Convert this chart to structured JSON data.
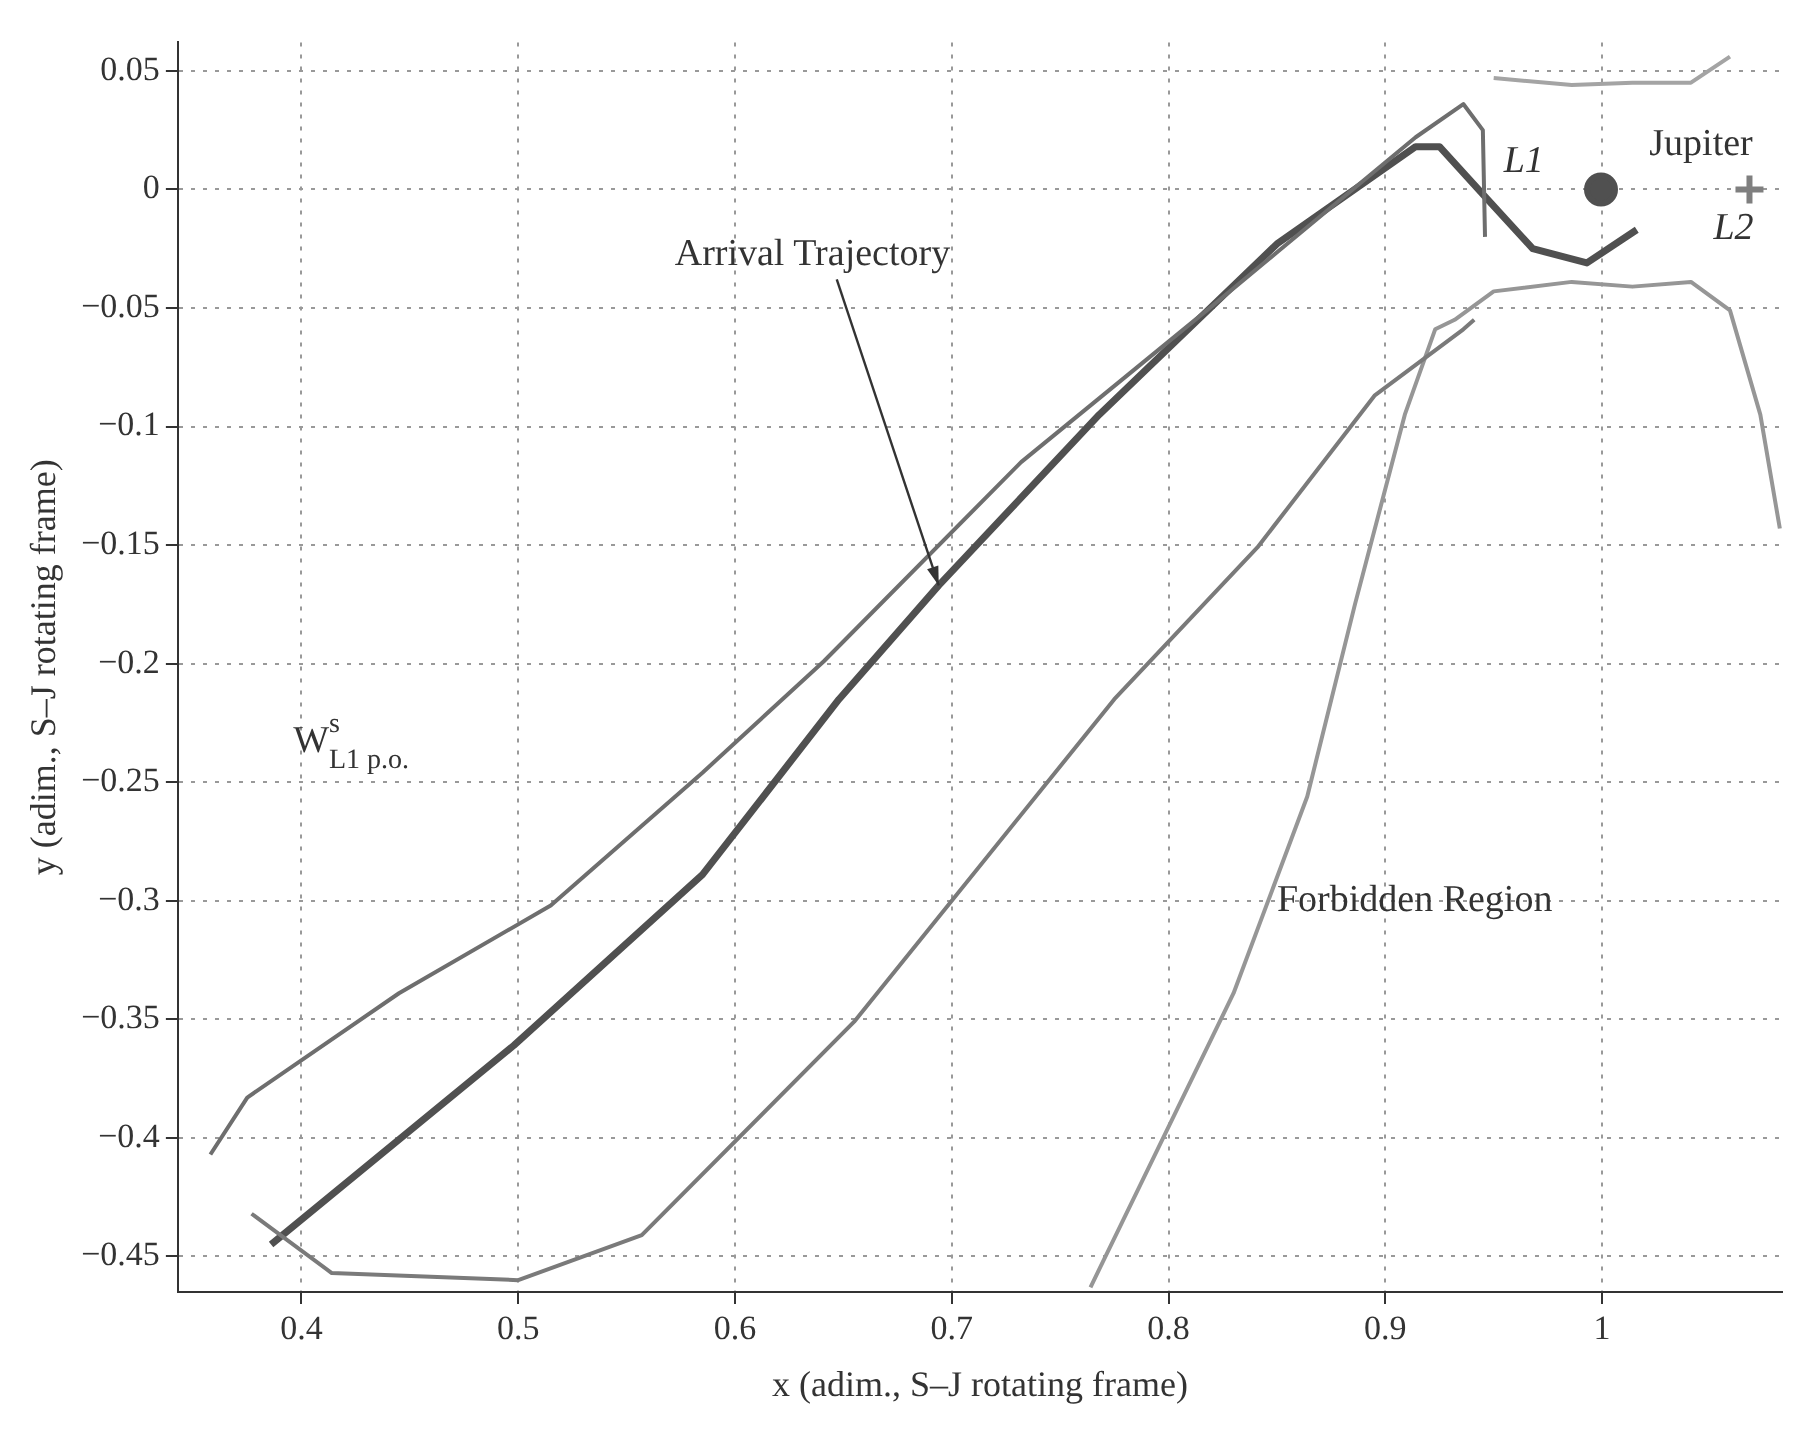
{
  "chart_data": {
    "type": "line",
    "xlabel": "x (adim., S–J rotating frame)",
    "ylabel": "y (adim., S–J rotating frame)",
    "xlim": [
      0.343,
      1.083
    ],
    "ylim": [
      -0.465,
      0.062
    ],
    "xticks": [
      0.4,
      0.5,
      0.6,
      0.7,
      0.8,
      0.9,
      1
    ],
    "yticks": [
      0.05,
      0,
      -0.05,
      -0.1,
      -0.15,
      -0.2,
      -0.25,
      -0.3,
      -0.35,
      -0.4,
      -0.45
    ],
    "grid": true,
    "legend": false,
    "line_style": "solid",
    "series": [
      {
        "color": "#6e6e6e",
        "x": [
          0.358,
          0.375,
          0.445,
          0.515,
          0.585,
          0.641,
          0.732,
          0.823,
          0.914,
          0.936,
          0.945,
          0.946
        ],
        "values": [
          -0.407,
          -0.383,
          -0.339,
          -0.302,
          -0.246,
          -0.199,
          -0.115,
          -0.047,
          0.022,
          0.036,
          0.025,
          -0.02
        ]
      },
      {
        "color": "#7a7a7a",
        "x": [
          0.377,
          0.414,
          0.5,
          0.557,
          0.655,
          0.775,
          0.841,
          0.895,
          0.936,
          0.941
        ],
        "values": [
          -0.432,
          -0.457,
          -0.46,
          -0.441,
          -0.351,
          -0.215,
          -0.151,
          -0.087,
          -0.059,
          -0.055
        ]
      },
      {
        "color": "#505050",
        "x": [
          0.386,
          0.498,
          0.585,
          0.648,
          0.694,
          0.768,
          0.85,
          0.914,
          0.925,
          0.944,
          0.968,
          0.993,
          1.016
        ],
        "values": [
          -0.445,
          -0.361,
          -0.289,
          -0.215,
          -0.167,
          -0.095,
          -0.023,
          0.018,
          0.018,
          -0.001,
          -0.025,
          -0.031,
          -0.017
        ]
      },
      {
        "color": "#969696",
        "x": [
          0.764,
          0.83,
          0.864,
          0.886,
          0.909,
          0.923,
          0.932,
          0.95,
          0.986,
          1.014,
          1.041,
          1.059,
          1.073,
          1.082
        ],
        "values": [
          -0.463,
          -0.339,
          -0.256,
          -0.175,
          -0.095,
          -0.059,
          -0.055,
          -0.043,
          -0.039,
          -0.041,
          -0.039,
          -0.051,
          -0.095,
          -0.143
        ]
      },
      {
        "color": "#a4a4a4",
        "x": [
          0.95,
          0.986,
          1.014,
          1.041,
          1.059
        ],
        "values": [
          0.047,
          0.044,
          0.045,
          0.045,
          0.056
        ]
      },
      {
        "type": "scatter",
        "marker": "circle",
        "color": "#505050",
        "x": [
          0.9995
        ],
        "values": [
          0
        ]
      },
      {
        "type": "scatter",
        "marker": "cross",
        "color": "#7f7f7f",
        "x": [
          1.068
        ],
        "values": [
          0
        ]
      }
    ],
    "annotations": [
      {
        "text": "Arrival Trajectory",
        "x": 0.694,
        "y": -0.167
      },
      {
        "text": "Jupiter",
        "x": 0.9995,
        "y": 0
      },
      "L1",
      {
        "text": "L2",
        "x": 1.068,
        "y": 0
      },
      "W$^{s}$$_{L1 p.o.}$",
      "Forbidden Region"
    ]
  }
}
